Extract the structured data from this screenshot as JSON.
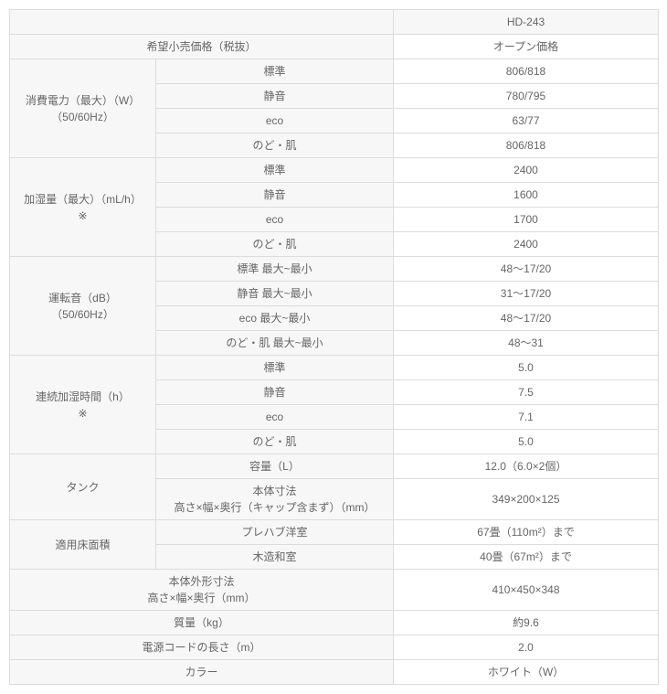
{
  "colors": {
    "border": "#dcdcdc",
    "header_bg": "#f7f7f7",
    "data_bg": "#ffffff",
    "text": "#666666"
  },
  "model": "HD-243",
  "price_label": "希望小売価格（税抜）",
  "price_value": "オープン価格",
  "power": {
    "label_l1": "消費電力（最大）（W）",
    "label_l2": "（50/60Hz）",
    "rows": {
      "std": {
        "label": "標準",
        "value": "806/818"
      },
      "quiet": {
        "label": "静音",
        "value": "780/795"
      },
      "eco": {
        "label": "eco",
        "value": "63/77"
      },
      "skin": {
        "label": "のど・肌",
        "value": "806/818"
      }
    }
  },
  "humid": {
    "label_l1": "加湿量（最大）（mL/h）",
    "label_l2": "※",
    "rows": {
      "std": {
        "label": "標準",
        "value": "2400"
      },
      "quiet": {
        "label": "静音",
        "value": "1600"
      },
      "eco": {
        "label": "eco",
        "value": "1700"
      },
      "skin": {
        "label": "のど・肌",
        "value": "2400"
      }
    }
  },
  "noise": {
    "label_l1": "運転音（dB）",
    "label_l2": "（50/60Hz）",
    "rows": {
      "std": {
        "label": "標準 最大~最小",
        "value": "48～17/20"
      },
      "quiet": {
        "label": "静音 最大~最小",
        "value": "31～17/20"
      },
      "eco": {
        "label": "eco 最大~最小",
        "value": "48～17/20"
      },
      "skin": {
        "label": "のど・肌 最大~最小",
        "value": "48～31"
      }
    }
  },
  "runtime": {
    "label_l1": "連続加湿時間（h）",
    "label_l2": "※",
    "rows": {
      "std": {
        "label": "標準",
        "value": "5.0"
      },
      "quiet": {
        "label": "静音",
        "value": "7.5"
      },
      "eco": {
        "label": "eco",
        "value": "7.1"
      },
      "skin": {
        "label": "のど・肌",
        "value": "5.0"
      }
    }
  },
  "tank": {
    "label": "タンク",
    "capacity": {
      "label": "容量（L）",
      "value": "12.0（6.0×2個）"
    },
    "body": {
      "label_l1": "本体寸法",
      "label_l2": "高さ×幅×奥行（キャップ含まず）（mm）",
      "value": "349×200×125"
    }
  },
  "floor": {
    "label": "適用床面積",
    "prefab": {
      "label": "プレハブ洋室",
      "value": "67畳（110m²）まで"
    },
    "japanese": {
      "label": "木造和室",
      "value": "40畳（67m²）まで"
    }
  },
  "outer": {
    "label_l1": "本体外形寸法",
    "label_l2": "高さ×幅×奥行（mm）",
    "value": "410×450×348"
  },
  "mass": {
    "label": "質量（kg）",
    "value": "約9.6"
  },
  "cord": {
    "label": "電源コードの長さ（m）",
    "value": "2.0"
  },
  "color": {
    "label": "カラー",
    "value": "ホワイト（W）"
  }
}
